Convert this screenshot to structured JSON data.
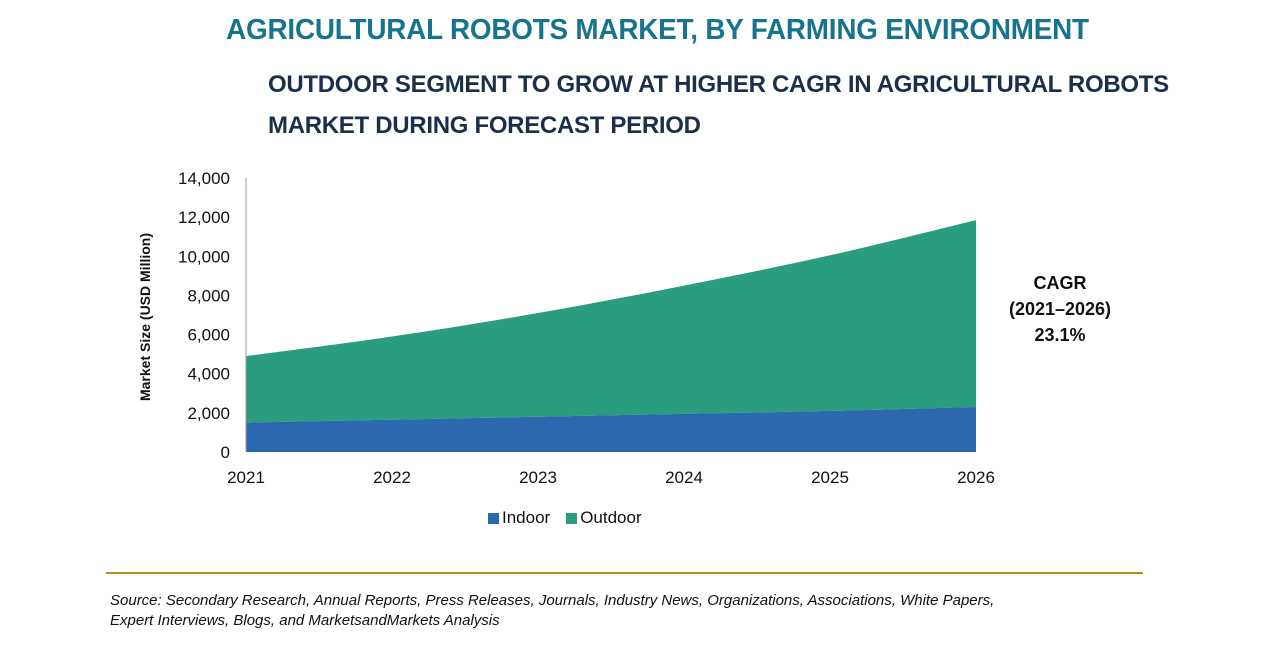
{
  "header": {
    "title": "AGRICULTURAL ROBOTS MARKET, BY FARMING ENVIRONMENT",
    "subtitle_line1": "OUTDOOR SEGMENT TO GROW AT HIGHER CAGR IN AGRICULTURAL ROBOTS",
    "subtitle_line2": "MARKET DURING FORECAST PERIOD"
  },
  "chart_data": {
    "type": "area",
    "stacked": true,
    "title": "AGRICULTURAL ROBOTS MARKET, BY FARMING ENVIRONMENT",
    "xlabel": "",
    "ylabel": "Market Size (USD Million)",
    "categories": [
      "2021",
      "2022",
      "2023",
      "2024",
      "2025",
      "2026"
    ],
    "ylim": [
      0,
      14000
    ],
    "yticks": [
      0,
      2000,
      4000,
      6000,
      8000,
      10000,
      12000,
      14000
    ],
    "ytick_labels": [
      "0",
      "2,000",
      "4,000",
      "6,000",
      "8,000",
      "10,000",
      "12,000",
      "14,000"
    ],
    "grid": false,
    "legend_position": "bottom",
    "series": [
      {
        "name": "Indoor",
        "color": "#2b68ae",
        "values": [
          1500,
          1650,
          1800,
          1950,
          2100,
          2300
        ]
      },
      {
        "name": "Outdoor",
        "color": "#2a9d7f",
        "values": [
          3400,
          4250,
          5300,
          6550,
          7950,
          9550
        ]
      }
    ],
    "annotation": {
      "line1": "CAGR",
      "line2": "(2021–2026)",
      "line3": "23.1%"
    }
  },
  "legend": {
    "items": [
      {
        "label": "Indoor",
        "color": "#2b68ae"
      },
      {
        "label": "Outdoor",
        "color": "#2a9d7f"
      }
    ]
  },
  "source": {
    "line1": "Source: Secondary Research, Annual Reports, Press Releases, Journals, Industry News, Organizations, Associations, White Papers,",
    "line2": "Expert Interviews, Blogs, and MarketsandMarkets Analysis"
  }
}
